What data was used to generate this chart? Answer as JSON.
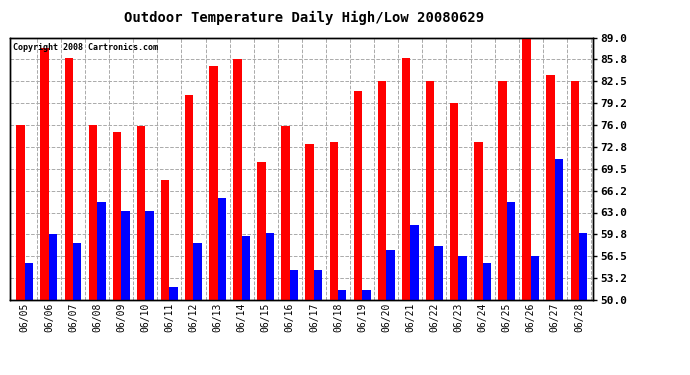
{
  "title": "Outdoor Temperature Daily High/Low 20080629",
  "copyright": "Copyright 2008 Cartronics.com",
  "dates": [
    "06/05",
    "06/06",
    "06/07",
    "06/08",
    "06/09",
    "06/10",
    "06/11",
    "06/12",
    "06/13",
    "06/14",
    "06/15",
    "06/16",
    "06/17",
    "06/18",
    "06/19",
    "06/20",
    "06/21",
    "06/22",
    "06/23",
    "06/24",
    "06/25",
    "06/26",
    "06/27",
    "06/28"
  ],
  "highs": [
    76.0,
    87.5,
    86.0,
    76.0,
    75.0,
    75.8,
    67.8,
    80.5,
    84.8,
    85.8,
    70.5,
    75.8,
    73.2,
    73.5,
    81.0,
    82.5,
    86.0,
    82.5,
    79.2,
    73.5,
    82.5,
    89.0,
    83.5,
    82.5
  ],
  "lows": [
    55.5,
    59.8,
    58.5,
    64.5,
    63.2,
    63.2,
    52.0,
    58.5,
    65.2,
    59.5,
    60.0,
    54.5,
    54.5,
    51.5,
    51.5,
    57.5,
    61.2,
    58.0,
    56.5,
    55.5,
    64.5,
    56.5,
    71.0,
    60.0
  ],
  "high_color": "#ff0000",
  "low_color": "#0000ff",
  "bg_color": "#ffffff",
  "plot_bg": "#ffffff",
  "grid_color": "#aaaaaa",
  "ylabel_right": [
    "89.0",
    "85.8",
    "82.5",
    "79.2",
    "76.0",
    "72.8",
    "69.5",
    "66.2",
    "63.0",
    "59.8",
    "56.5",
    "53.2",
    "50.0"
  ],
  "yticks": [
    89.0,
    85.8,
    82.5,
    79.2,
    76.0,
    72.8,
    69.5,
    66.2,
    63.0,
    59.8,
    56.5,
    53.2,
    50.0
  ],
  "ylim": [
    50.0,
    89.0
  ],
  "bar_width": 0.35
}
